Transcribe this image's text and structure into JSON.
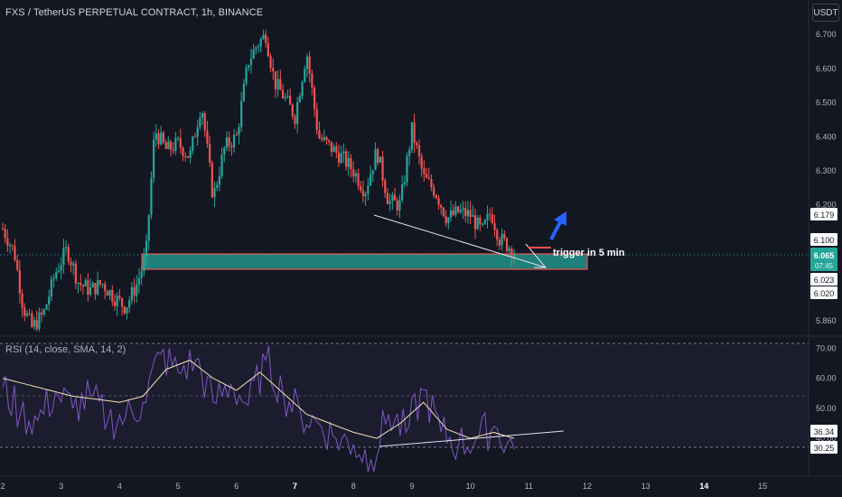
{
  "header": {
    "title": "FXS / TetherUS PERPETUAL CONTRACT, 1h, BINANCE",
    "currency": "USDT"
  },
  "rsi_panel": {
    "title": "RSI (14, close, SMA, 14, 2)"
  },
  "annotation": {
    "trigger_text": "trigger in 5 min"
  },
  "price_badges": {
    "last_price": "6.065",
    "countdown": "07:45",
    "level_6179": "6.179",
    "level_6100": "6.100",
    "level_6023": "6.023",
    "level_6020": "6.020",
    "rsi_value": "36.34",
    "rsi_level": "30.25"
  },
  "colors": {
    "background": "#131722",
    "up": "#26a69a",
    "down": "#ef5350",
    "zone_fill": "#1f7f7b",
    "zone_border": "#ef5350",
    "rsi_line": "#7e57c2",
    "rsi_sma": "#f5e6b3",
    "arrow": "#2962ff"
  },
  "chart_data": [
    {
      "type": "candlestick",
      "title": "FXS / TetherUS PERPETUAL CONTRACT, 1h, BINANCE",
      "ylabel": "USDT",
      "ylim": [
        5.82,
        6.78
      ],
      "yticks": [
        5.86,
        6.02,
        6.1,
        6.2,
        6.3,
        6.4,
        6.5,
        6.6,
        6.7
      ],
      "xticks": [
        "2",
        "3",
        "4",
        "5",
        "6",
        "7",
        "8",
        "9",
        "10",
        "11",
        "12",
        "13",
        "14",
        "15"
      ],
      "close_path": [
        [
          0.0,
          6.13
        ],
        [
          0.2,
          6.06
        ],
        [
          0.35,
          5.9
        ],
        [
          0.5,
          5.84
        ],
        [
          0.7,
          5.88
        ],
        [
          0.9,
          6.0
        ],
        [
          1.1,
          6.07
        ],
        [
          1.3,
          5.97
        ],
        [
          1.5,
          5.95
        ],
        [
          1.7,
          5.97
        ],
        [
          1.9,
          5.93
        ],
        [
          2.1,
          5.9
        ],
        [
          2.3,
          5.97
        ],
        [
          2.45,
          6.05
        ],
        [
          2.6,
          6.42
        ],
        [
          2.8,
          6.36
        ],
        [
          3.0,
          6.38
        ],
        [
          3.2,
          6.34
        ],
        [
          3.4,
          6.5
        ],
        [
          3.6,
          6.22
        ],
        [
          3.8,
          6.37
        ],
        [
          4.0,
          6.4
        ],
        [
          4.2,
          6.62
        ],
        [
          4.35,
          6.67
        ],
        [
          4.5,
          6.7
        ],
        [
          4.65,
          6.56
        ],
        [
          4.8,
          6.52
        ],
        [
          5.0,
          6.46
        ],
        [
          5.2,
          6.65
        ],
        [
          5.4,
          6.4
        ],
        [
          5.6,
          6.37
        ],
        [
          5.8,
          6.34
        ],
        [
          6.0,
          6.3
        ],
        [
          6.2,
          6.24
        ],
        [
          6.4,
          6.36
        ],
        [
          6.6,
          6.21
        ],
        [
          6.8,
          6.2
        ],
        [
          7.0,
          6.42
        ],
        [
          7.2,
          6.28
        ],
        [
          7.4,
          6.24
        ],
        [
          7.6,
          6.16
        ],
        [
          7.8,
          6.18
        ],
        [
          8.0,
          6.17
        ],
        [
          8.2,
          6.12
        ],
        [
          8.35,
          6.18
        ],
        [
          8.5,
          6.1
        ],
        [
          8.65,
          6.08
        ],
        [
          8.75,
          6.065
        ]
      ],
      "demand_zone": [
        6.023,
        6.079
      ],
      "trigger_level": 6.1
    },
    {
      "type": "line",
      "title": "RSI (14, close, SMA, 14, 2)",
      "ylim": [
        28,
        74
      ],
      "yticks": [
        30.25,
        36.34,
        40,
        50,
        60,
        70
      ],
      "bands": [
        30,
        70
      ],
      "series": [
        {
          "x": [
            0.0,
            0.3,
            0.6,
            0.9,
            1.2,
            1.5,
            1.8,
            2.1,
            2.4,
            2.7,
            3.0,
            3.3,
            3.6,
            3.9,
            4.2,
            4.5,
            4.8,
            5.1,
            5.4,
            5.7,
            6.0,
            6.3,
            6.6,
            6.9,
            7.2,
            7.5,
            7.8,
            8.1,
            8.4,
            8.75
          ],
          "values": [
            57,
            48,
            46,
            55,
            50,
            54,
            46,
            47,
            52,
            68,
            62,
            66,
            52,
            58,
            51,
            66,
            55,
            48,
            45,
            40,
            38,
            33,
            48,
            42,
            56,
            42,
            38,
            40,
            44,
            36.34
          ]
        },
        {
          "x": [
            0.0,
            0.4,
            0.8,
            1.2,
            1.6,
            2.0,
            2.4,
            2.8,
            3.2,
            3.6,
            4.0,
            4.4,
            4.8,
            5.2,
            5.6,
            6.0,
            6.4,
            6.8,
            7.2,
            7.6,
            8.0,
            8.4,
            8.75
          ],
          "values": [
            60,
            58,
            56,
            54,
            53,
            52,
            54,
            63,
            66,
            60,
            56,
            62,
            55,
            48,
            45,
            42,
            40,
            45,
            52,
            43,
            40,
            42,
            40
          ]
        }
      ]
    }
  ]
}
